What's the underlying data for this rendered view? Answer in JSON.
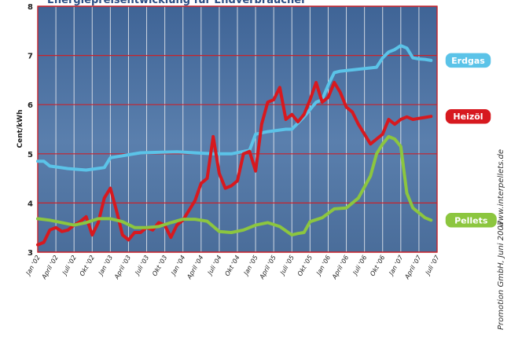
{
  "title": "Energiepreisentwicklung für Endverbraucher",
  "ylabel": "Cent/kWh",
  "credits": {
    "website": "www.interpellets.de",
    "company": "Promotion GmbH, Juni 2007"
  },
  "colors": {
    "plot_bg": "#4b6e9c",
    "grid_h": "#c8232c",
    "grid_v": "#e6e9ee",
    "frame": "#c8232c",
    "Erdgas": "#5bc3e8",
    "Heizöl": "#d7191f",
    "Pellets": "#8cc63f"
  },
  "chart_data": {
    "type": "line",
    "title": "Energiepreisentwicklung für Endverbraucher",
    "xlabel": "",
    "ylabel": "Cent/kWh",
    "ylim": [
      3,
      8
    ],
    "yticks": [
      3,
      4,
      5,
      6,
      7,
      8
    ],
    "x_ticks": [
      "Jan '02",
      "April '02",
      "Juli '02",
      "Okt '02",
      "Jan '03",
      "April '03",
      "Juli '03",
      "Okt '03",
      "Jan '04",
      "April '04",
      "Juli '04",
      "Okt '04",
      "Jan '05",
      "April '05",
      "Juli '05",
      "Okt '05",
      "Jan '06",
      "April '06",
      "Juli '06",
      "Okt '06",
      "Jan '07",
      "April '07",
      "Juli '07"
    ],
    "x_start": "2002-01",
    "x_end": "2007-07",
    "grid": true,
    "series": [
      {
        "name": "Erdgas",
        "x": [
          "2002-01",
          "2002-02",
          "2002-03",
          "2002-06",
          "2002-09",
          "2002-12",
          "2003-01",
          "2003-06",
          "2003-12",
          "2004-06",
          "2004-09",
          "2004-12",
          "2005-01",
          "2005-03",
          "2005-06",
          "2005-07",
          "2005-09",
          "2005-10",
          "2005-11",
          "2005-12",
          "2006-01",
          "2006-02",
          "2006-03",
          "2006-06",
          "2006-09",
          "2006-10",
          "2006-11",
          "2006-12",
          "2007-01",
          "2007-02",
          "2007-03",
          "2007-04",
          "2007-05",
          "2007-06"
        ],
        "values": [
          4.85,
          4.85,
          4.75,
          4.7,
          4.67,
          4.72,
          4.92,
          5.02,
          5.04,
          5.0,
          5.0,
          5.07,
          5.4,
          5.45,
          5.5,
          5.5,
          5.75,
          5.9,
          6.05,
          6.1,
          6.4,
          6.65,
          6.68,
          6.72,
          6.76,
          6.95,
          7.07,
          7.12,
          7.2,
          7.15,
          6.95,
          6.93,
          6.92,
          6.9
        ]
      },
      {
        "name": "Heizöl",
        "x": [
          "2002-01",
          "2002-02",
          "2002-03",
          "2002-04",
          "2002-05",
          "2002-06",
          "2002-07",
          "2002-08",
          "2002-09",
          "2002-10",
          "2002-11",
          "2002-12",
          "2003-01",
          "2003-02",
          "2003-03",
          "2003-04",
          "2003-05",
          "2003-06",
          "2003-07",
          "2003-08",
          "2003-09",
          "2003-10",
          "2003-11",
          "2003-12",
          "2004-01",
          "2004-02",
          "2004-03",
          "2004-04",
          "2004-05",
          "2004-06",
          "2004-07",
          "2004-08",
          "2004-09",
          "2004-10",
          "2004-11",
          "2004-12",
          "2005-01",
          "2005-02",
          "2005-03",
          "2005-04",
          "2005-05",
          "2005-06",
          "2005-07",
          "2005-08",
          "2005-09",
          "2005-10",
          "2005-11",
          "2005-12",
          "2006-01",
          "2006-02",
          "2006-03",
          "2006-04",
          "2006-05",
          "2006-06",
          "2006-07",
          "2006-08",
          "2006-09",
          "2006-10",
          "2006-11",
          "2006-12",
          "2007-01",
          "2007-02",
          "2007-03",
          "2007-04",
          "2007-05",
          "2007-06"
        ],
        "values": [
          3.15,
          3.2,
          3.45,
          3.5,
          3.42,
          3.45,
          3.55,
          3.62,
          3.72,
          3.35,
          3.6,
          4.1,
          4.3,
          3.85,
          3.35,
          3.25,
          3.4,
          3.4,
          3.5,
          3.45,
          3.6,
          3.55,
          3.3,
          3.55,
          3.65,
          3.85,
          4.05,
          4.4,
          4.5,
          5.35,
          4.6,
          4.3,
          4.35,
          4.45,
          5.0,
          5.05,
          4.65,
          5.6,
          6.05,
          6.1,
          6.35,
          5.7,
          5.8,
          5.65,
          5.8,
          6.1,
          6.45,
          6.05,
          6.15,
          6.45,
          6.25,
          5.95,
          5.85,
          5.6,
          5.4,
          5.2,
          5.3,
          5.4,
          5.7,
          5.6,
          5.7,
          5.75,
          5.7,
          5.72,
          5.74,
          5.76
        ]
      },
      {
        "name": "Pellets",
        "x": [
          "2002-01",
          "2002-03",
          "2002-05",
          "2002-07",
          "2002-09",
          "2002-11",
          "2003-01",
          "2003-03",
          "2003-05",
          "2003-07",
          "2003-09",
          "2003-11",
          "2004-01",
          "2004-03",
          "2004-05",
          "2004-07",
          "2004-09",
          "2004-11",
          "2005-01",
          "2005-03",
          "2005-05",
          "2005-07",
          "2005-08",
          "2005-09",
          "2005-10",
          "2005-12",
          "2006-02",
          "2006-04",
          "2006-06",
          "2006-08",
          "2006-09",
          "2006-10",
          "2006-11",
          "2006-12",
          "2007-01",
          "2007-02",
          "2007-03",
          "2007-04",
          "2007-05",
          "2007-06"
        ],
        "values": [
          3.68,
          3.65,
          3.6,
          3.55,
          3.6,
          3.68,
          3.68,
          3.62,
          3.5,
          3.5,
          3.52,
          3.6,
          3.67,
          3.67,
          3.63,
          3.42,
          3.4,
          3.45,
          3.55,
          3.6,
          3.52,
          3.35,
          3.38,
          3.4,
          3.62,
          3.7,
          3.88,
          3.9,
          4.1,
          4.55,
          5.0,
          5.2,
          5.35,
          5.3,
          5.15,
          4.2,
          3.9,
          3.8,
          3.7,
          3.65
        ]
      }
    ]
  }
}
